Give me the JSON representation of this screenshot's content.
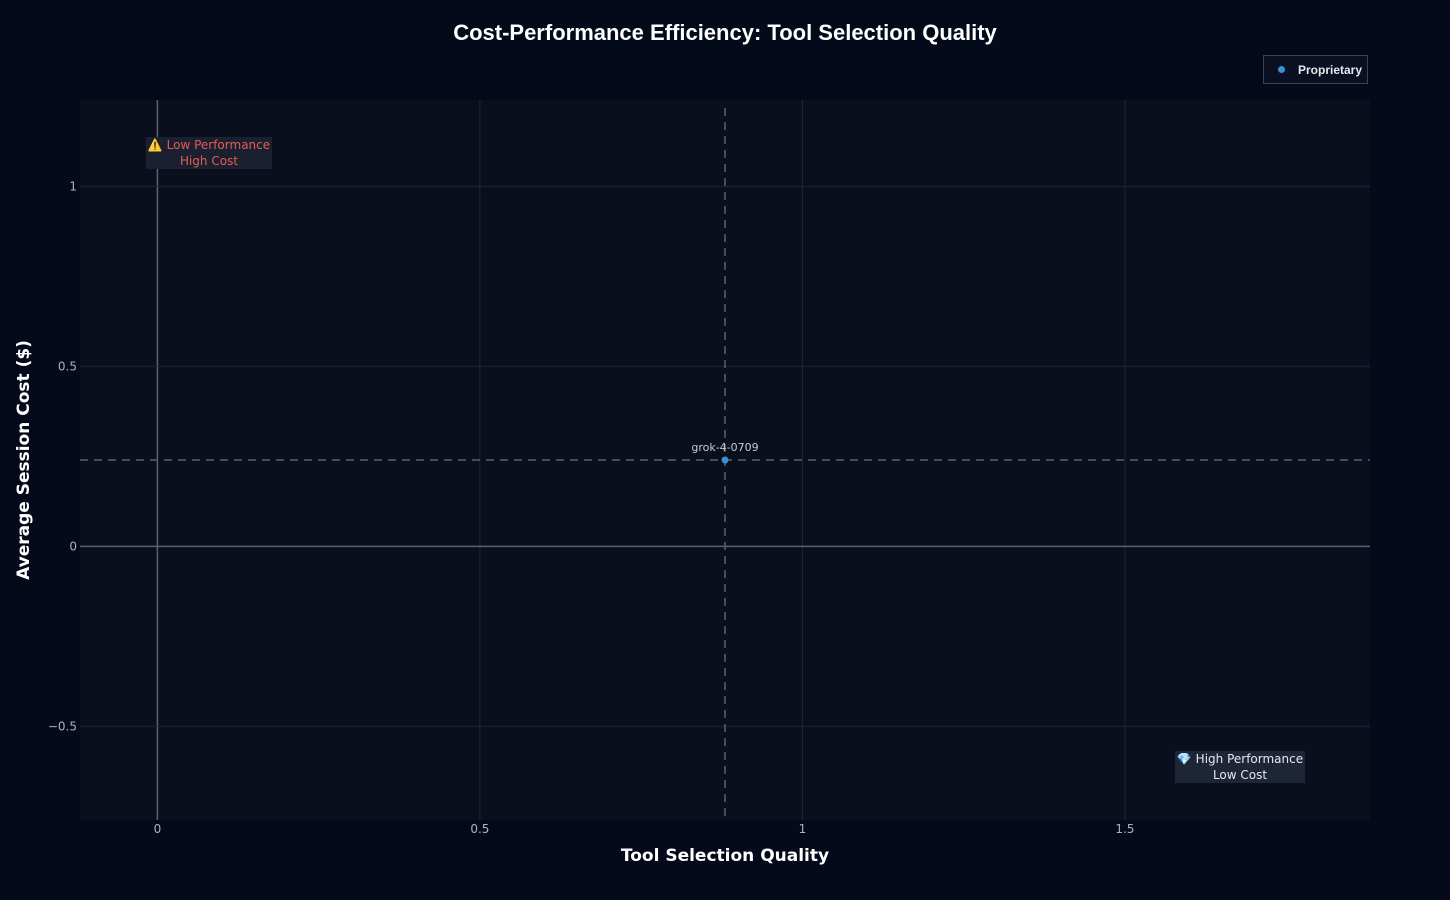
{
  "colors": {
    "background": "#050a1a",
    "plot_background": "#0a0f1e",
    "grid": "#1f2637",
    "zero_line": "#5a6172",
    "reference_line": "#5a6172",
    "proprietary": "#3b8fd4",
    "warning_text": "#e45b55",
    "good_text": "#e6e8ee"
  },
  "chart_data": {
    "type": "scatter",
    "title": "Cost-Performance Efficiency: Tool Selection Quality",
    "xlabel": "Tool Selection Quality",
    "ylabel": "Average Session Cost ($)",
    "xlim": [
      -0.12,
      1.88
    ],
    "ylim": [
      -0.76,
      1.24
    ],
    "xticks": [
      0,
      0.5,
      1,
      1.5
    ],
    "xtick_labels": [
      "0",
      "0.5",
      "1",
      "1.5"
    ],
    "yticks": [
      -0.5,
      0,
      0.5,
      1
    ],
    "ytick_labels": [
      "−0.5",
      "0",
      "0.5",
      "1"
    ],
    "grid": true,
    "legend_position": "top-right",
    "series": [
      {
        "name": "Proprietary",
        "color": "#3b8fd4",
        "points": [
          {
            "x": 0.88,
            "y": 0.24,
            "label": "grok-4-0709"
          }
        ]
      }
    ],
    "reference_lines": {
      "x": 0.88,
      "y": 0.24
    },
    "annotations": [
      {
        "text_line1": "Low Performance",
        "text_line2": "High Cost",
        "icon": "warning-icon",
        "glyph": "⚠️",
        "position": "top-left"
      },
      {
        "text_line1": "High Performance",
        "text_line2": "Low Cost",
        "icon": "gem-icon",
        "glyph": "💎",
        "position": "bottom-right"
      }
    ]
  }
}
